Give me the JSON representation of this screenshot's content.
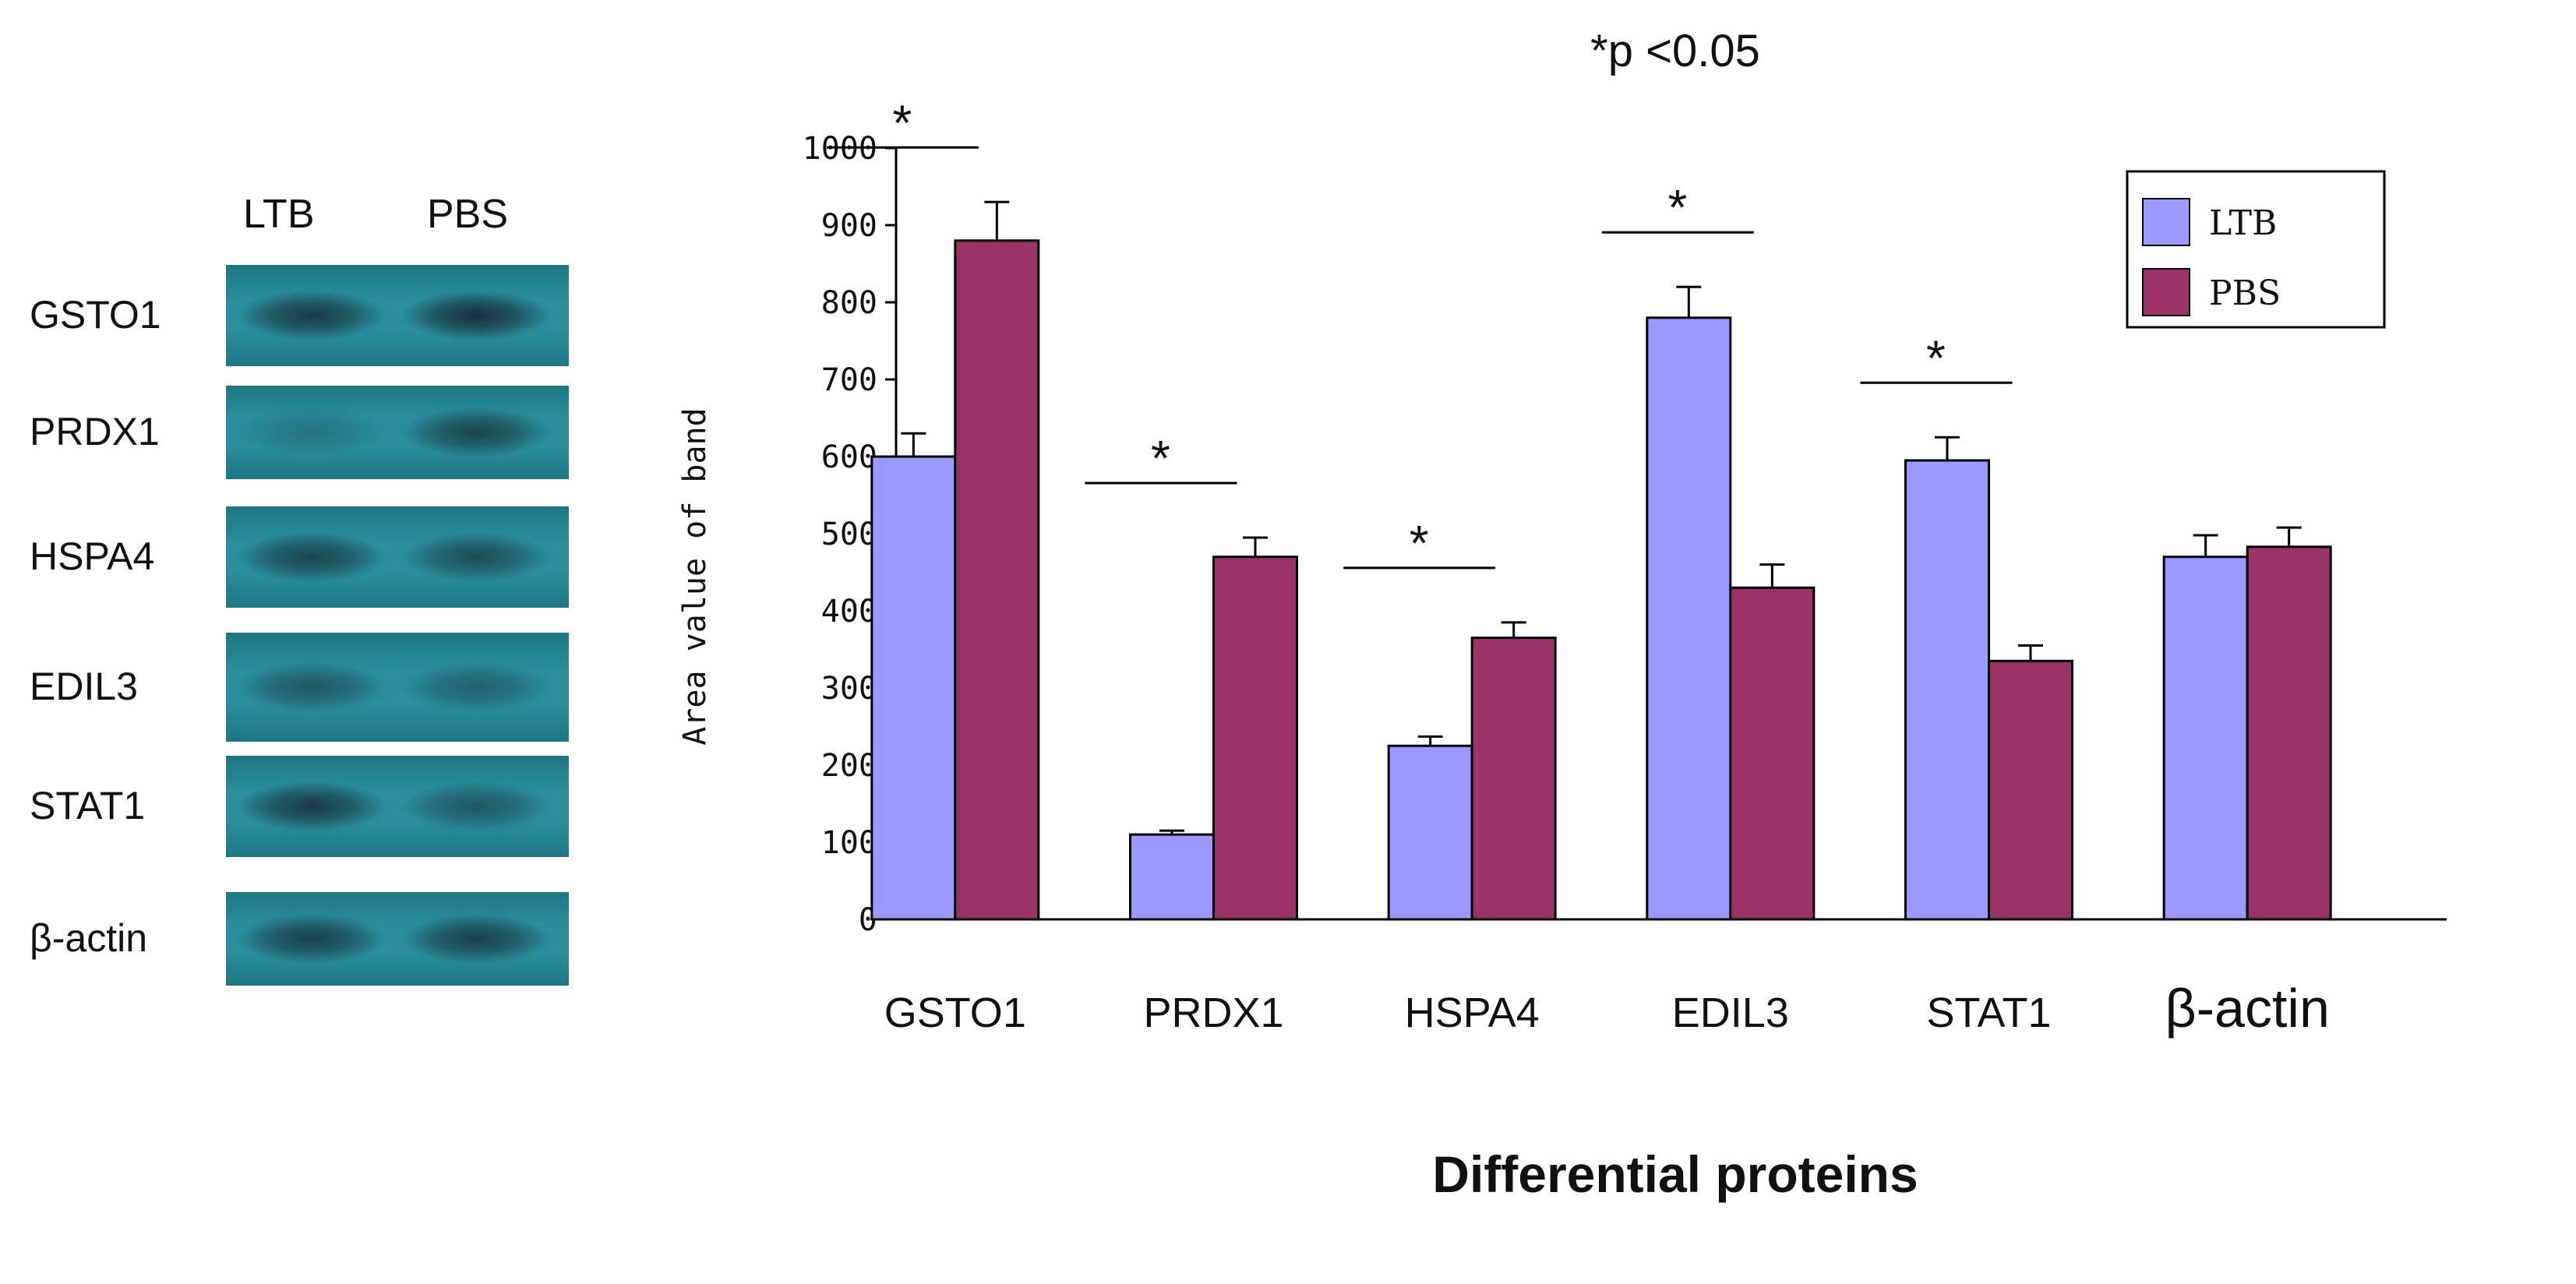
{
  "blot": {
    "lanes": [
      "LTB",
      "PBS"
    ],
    "rows": [
      {
        "label": "GSTO1",
        "lane_intensity": [
          0.85,
          0.95
        ]
      },
      {
        "label": "PRDX1",
        "lane_intensity": [
          0.25,
          0.75
        ]
      },
      {
        "label": "HSPA4",
        "lane_intensity": [
          0.75,
          0.65
        ]
      },
      {
        "label": "EDIL3",
        "lane_intensity": [
          0.55,
          0.45
        ]
      },
      {
        "label": "STAT1",
        "lane_intensity": [
          0.85,
          0.55
        ]
      },
      {
        "label": "β-actin",
        "lane_intensity": [
          0.8,
          0.8
        ]
      }
    ],
    "colors": {
      "membrane": "#2a8e9c",
      "membrane_edge": "#1f7684",
      "band": "#152b35"
    }
  },
  "chart_data": {
    "type": "bar",
    "title": "*p <0.05",
    "xlabel": "Differential proteins",
    "ylabel": "Area value of band",
    "ylim": [
      0,
      1000
    ],
    "yticks": [
      0,
      100,
      200,
      300,
      400,
      500,
      600,
      700,
      800,
      900,
      1000
    ],
    "categories": [
      "GSTO1",
      "PRDX1",
      "HSPA4",
      "EDIL3",
      "STAT1",
      "β-actin"
    ],
    "series": [
      {
        "name": "LTB",
        "color": "#9999ff",
        "values": [
          600,
          110,
          225,
          780,
          595,
          470
        ],
        "errors": [
          30,
          5,
          12,
          40,
          30,
          28
        ]
      },
      {
        "name": "PBS",
        "color": "#993366",
        "values": [
          880,
          470,
          365,
          430,
          335,
          483
        ],
        "errors": [
          50,
          25,
          20,
          30,
          20,
          25
        ]
      }
    ],
    "significance_marker": "*",
    "significant": [
      true,
      true,
      true,
      true,
      true,
      false
    ],
    "legend": {
      "position": "top-right"
    },
    "grid": false
  }
}
